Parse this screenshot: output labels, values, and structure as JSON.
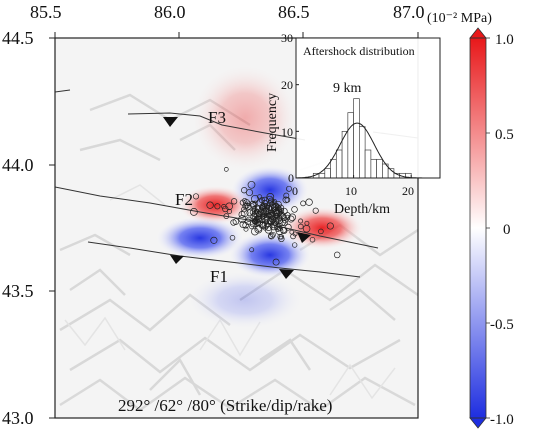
{
  "map": {
    "lon_ticks": [
      "85.5",
      "86.0",
      "86.5",
      "87.0"
    ],
    "lat_ticks": [
      "44.5",
      "44.0",
      "43.5",
      "43.0"
    ],
    "annotation": "292° /62° /80° (Strike/dip/rake)",
    "faults": [
      {
        "label": "F1"
      },
      {
        "label": "F2"
      },
      {
        "label": "F3"
      }
    ],
    "stress_colors": {
      "positive": "#e8181a",
      "negative": "#1e2ee0",
      "zero": "#ffffff"
    }
  },
  "colorbar": {
    "unit": "(10⁻² MPa)",
    "ticks": [
      "1.0",
      "0.5",
      "0",
      "-0.5",
      "-1.0"
    ]
  },
  "inset": {
    "title": "Aftershock distribution",
    "ylabel": "Frequency",
    "xlabel": "Depth/km",
    "peak_label": "9 km",
    "x_ticks": [
      "0",
      "10",
      "20"
    ],
    "y_ticks": [
      "0",
      "10",
      "20",
      "30"
    ]
  },
  "chart_data": {
    "type": "bar",
    "title": "Aftershock distribution",
    "xlabel": "Depth/km",
    "ylabel": "Frequency",
    "xlim": [
      0,
      25
    ],
    "ylim": [
      0,
      30
    ],
    "bin_width": 1,
    "bins": [
      0,
      1,
      2,
      3,
      4,
      5,
      6,
      7,
      8,
      9,
      10,
      11,
      12,
      13,
      14,
      15,
      16,
      17,
      18,
      19,
      20,
      21,
      22,
      23,
      24
    ],
    "values": [
      0,
      0,
      0,
      1,
      1,
      2,
      4,
      6,
      10,
      14,
      17,
      11,
      6,
      4,
      4,
      3,
      2,
      1,
      1,
      1,
      0,
      0,
      0,
      0,
      0
    ],
    "fit": "gaussian",
    "annotation": "9 km"
  }
}
